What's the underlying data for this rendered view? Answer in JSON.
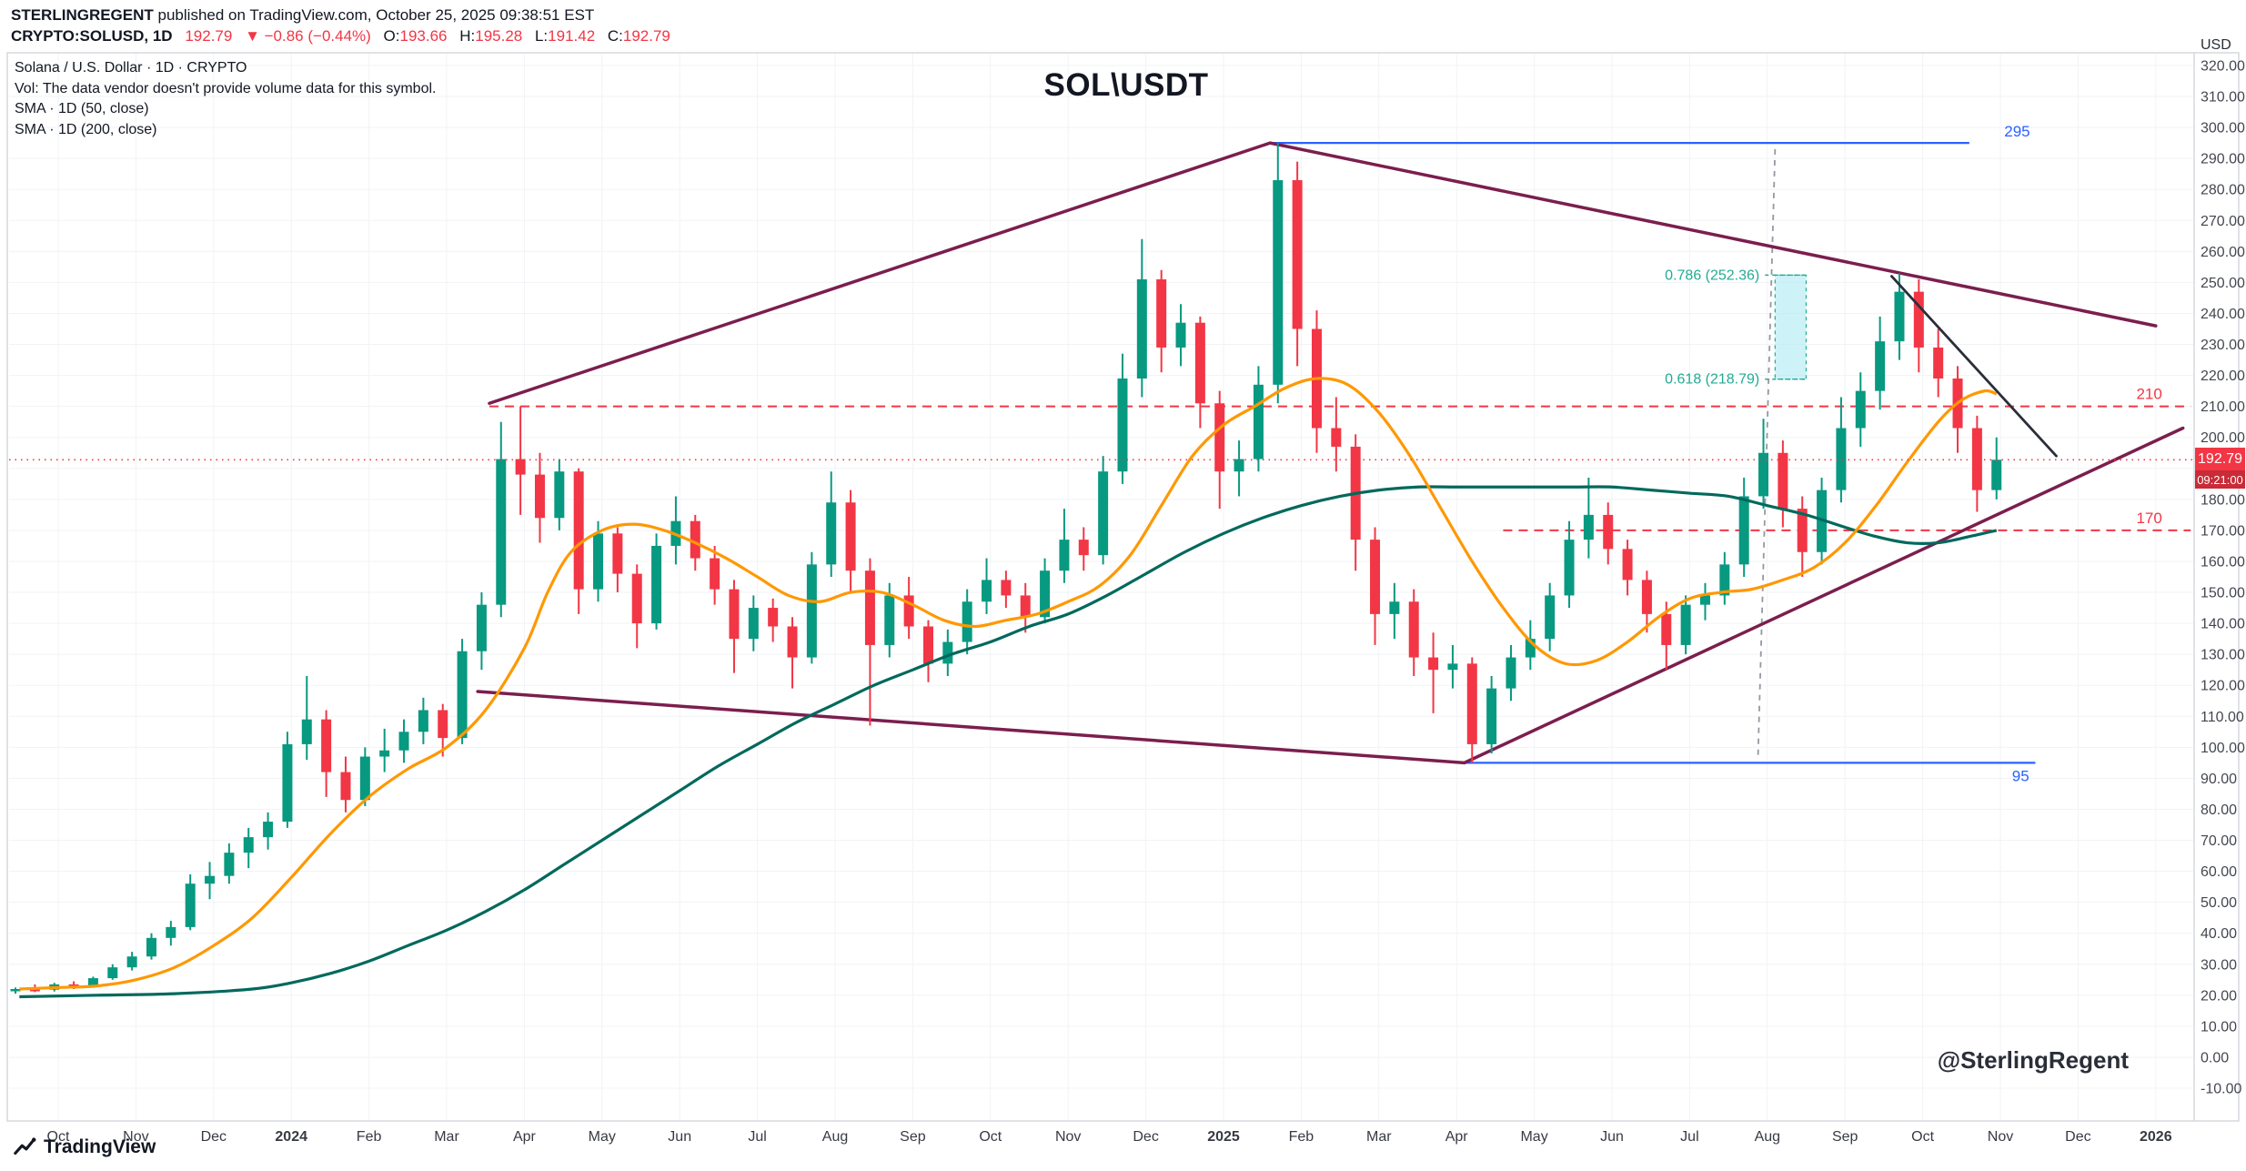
{
  "header": {
    "byline_user": "STERLINGREGENT",
    "byline_rest": " published on TradingView.com, October 25, 2025 09:38:51 EST",
    "symbol": "CRYPTO:SOLUSD, 1D",
    "price": "192.79",
    "change": "▼ −0.86 (−0.44%)",
    "o_label": "O:",
    "o": "193.66",
    "h_label": "H:",
    "h": "195.28",
    "l_label": "L:",
    "l": "191.42",
    "c_label": "C:",
    "c": "192.79"
  },
  "legend": {
    "line1": "Solana / U.S. Dollar · 1D · CRYPTO",
    "line2": "Vol: The data vendor doesn't provide volume data for this symbol.",
    "line3": "SMA · 1D (50, close)",
    "line4": "SMA · 1D (200, close)"
  },
  "title": "SOL\\USDT",
  "watermark": "@SterlingRegent",
  "footer": {
    "brand": "TradingView"
  },
  "price_label": {
    "value": "192.79",
    "countdown": "09:21:00"
  },
  "axis": {
    "currency": "USD",
    "price_min": -10,
    "price_max": 320,
    "price_step": 10,
    "months": [
      "Oct",
      "Nov",
      "Dec",
      "2024",
      "Feb",
      "Mar",
      "Apr",
      "May",
      "Jun",
      "Jul",
      "Aug",
      "Sep",
      "Oct",
      "Nov",
      "Dec",
      "2025",
      "Feb",
      "Mar",
      "Apr",
      "May",
      "Jun",
      "Jul",
      "Aug",
      "Sep",
      "Oct",
      "Nov",
      "Dec",
      "2026"
    ],
    "year_indices": [
      3,
      15,
      27
    ]
  },
  "colors": {
    "up": "#089981",
    "down": "#F23645",
    "sma50": "#FF9800",
    "sma200": "#00695C",
    "pattern": "#7B1E4E",
    "blue": "#2962FF",
    "red": "#F23645",
    "fib": "#22AB94",
    "fib_fill": "#B2EBF2",
    "vline": "#9598A1",
    "trend": "#2A2E39",
    "grid": "#F1F3F6",
    "border": "#D6D8DE",
    "axis_text": "#131722"
  },
  "annotations": {
    "current_price": 192.79,
    "levels": [
      {
        "price": 295,
        "label": "295",
        "color_key": "blue",
        "dash": false,
        "from": 15.6,
        "to": 24.6,
        "label_m": 25.05,
        "label_dy": -7
      },
      {
        "price": 95,
        "label": "95",
        "color_key": "blue",
        "dash": false,
        "from": 18.1,
        "to": 25.45,
        "label_m": 25.15,
        "label_dy": 20
      },
      {
        "price": 210,
        "label": "210",
        "color_key": "red",
        "dash": true,
        "from": 5.55,
        "to": 27.45,
        "label_m": 26.75,
        "label_dy": -8
      },
      {
        "price": 170,
        "label": "170",
        "color_key": "red",
        "dash": true,
        "from": 18.6,
        "to": 27.45,
        "label_m": 26.75,
        "label_dy": -8
      }
    ],
    "fib": {
      "upper_label": "0.786 (252.36)",
      "lower_label": "0.618 (218.79)",
      "upper": 252.36,
      "lower": 218.79,
      "label_m": 21.9,
      "box_from": 22.1,
      "box_to": 22.5
    },
    "pattern_lines": [
      [
        5.55,
        211,
        15.6,
        295
      ],
      [
        15.6,
        295,
        27.0,
        236
      ],
      [
        5.4,
        118,
        18.1,
        95
      ],
      [
        18.1,
        95,
        27.35,
        203
      ]
    ],
    "trendline": [
      23.6,
      252,
      25.72,
      194
    ],
    "vline": [
      22.1,
      293,
      21.88,
      97
    ]
  },
  "chart_data": {
    "type": "candlestick",
    "symbol": "CRYPTO:SOLUSD",
    "timeframe": "1D",
    "title": "SOL\\USDT",
    "x_unit": "months since Oct 1, 2023 (data shown Oct 2023 – late Oct 2025)",
    "ylim": [
      -10,
      320
    ],
    "last_close": 192.79,
    "candles": [
      [
        -0.55,
        21.5,
        22.5,
        20.5,
        22
      ],
      [
        -0.3,
        22,
        23.5,
        21,
        21.8
      ],
      [
        -0.05,
        21.8,
        24,
        21.2,
        23.5
      ],
      [
        0.2,
        23.5,
        24.5,
        22,
        23
      ],
      [
        0.45,
        23,
        26,
        22.5,
        25.5
      ],
      [
        0.7,
        25.5,
        30,
        25,
        29
      ],
      [
        0.95,
        29,
        34,
        28,
        32.5
      ],
      [
        1.2,
        32.5,
        40,
        31.5,
        38.5
      ],
      [
        1.45,
        38.5,
        44,
        36,
        42
      ],
      [
        1.7,
        42,
        59,
        41,
        56
      ],
      [
        1.95,
        56,
        63,
        51,
        58.5
      ],
      [
        2.2,
        58.5,
        69,
        56,
        66
      ],
      [
        2.45,
        66,
        74,
        61,
        71
      ],
      [
        2.7,
        71,
        79,
        67,
        76
      ],
      [
        2.95,
        76,
        105,
        74,
        101
      ],
      [
        3.2,
        101,
        123,
        96,
        109
      ],
      [
        3.45,
        109,
        112,
        84,
        92
      ],
      [
        3.7,
        92,
        97,
        79,
        83
      ],
      [
        3.95,
        83,
        100,
        81,
        97
      ],
      [
        4.2,
        97,
        106,
        92,
        99
      ],
      [
        4.45,
        99,
        109,
        95,
        105
      ],
      [
        4.7,
        105,
        116,
        101,
        112
      ],
      [
        4.95,
        112,
        114,
        97,
        103
      ],
      [
        5.2,
        103,
        135,
        101,
        131
      ],
      [
        5.45,
        131,
        150,
        125,
        146
      ],
      [
        5.7,
        146,
        205,
        142,
        193
      ],
      [
        5.95,
        193,
        210,
        175,
        188
      ],
      [
        6.2,
        188,
        195,
        166,
        174
      ],
      [
        6.45,
        174,
        193,
        170,
        189
      ],
      [
        6.7,
        189,
        190,
        143,
        151
      ],
      [
        6.95,
        151,
        173,
        147,
        169
      ],
      [
        7.2,
        169,
        171,
        150,
        156
      ],
      [
        7.45,
        156,
        159,
        132,
        140
      ],
      [
        7.7,
        140,
        169,
        138,
        165
      ],
      [
        7.95,
        165,
        181,
        159,
        173
      ],
      [
        8.2,
        173,
        175,
        157,
        161
      ],
      [
        8.45,
        161,
        165,
        146,
        151
      ],
      [
        8.7,
        151,
        154,
        124,
        135
      ],
      [
        8.95,
        135,
        149,
        131,
        145
      ],
      [
        9.2,
        145,
        148,
        134,
        139
      ],
      [
        9.45,
        139,
        142,
        119,
        129
      ],
      [
        9.7,
        129,
        163,
        127,
        159
      ],
      [
        9.95,
        159,
        189,
        155,
        179
      ],
      [
        10.2,
        179,
        183,
        150,
        157
      ],
      [
        10.45,
        157,
        161,
        107,
        133
      ],
      [
        10.7,
        133,
        153,
        129,
        149
      ],
      [
        10.95,
        149,
        155,
        135,
        139
      ],
      [
        11.2,
        139,
        141,
        121,
        127
      ],
      [
        11.45,
        127,
        138,
        123,
        134
      ],
      [
        11.7,
        134,
        151,
        130,
        147
      ],
      [
        11.95,
        147,
        161,
        143,
        154
      ],
      [
        12.2,
        154,
        157,
        145,
        149
      ],
      [
        12.45,
        149,
        153,
        137,
        142
      ],
      [
        12.7,
        142,
        161,
        140,
        157
      ],
      [
        12.95,
        157,
        177,
        153,
        167
      ],
      [
        13.2,
        167,
        171,
        157,
        162
      ],
      [
        13.45,
        162,
        194,
        159,
        189
      ],
      [
        13.7,
        189,
        227,
        185,
        219
      ],
      [
        13.95,
        219,
        264,
        213,
        251
      ],
      [
        14.2,
        251,
        254,
        221,
        229
      ],
      [
        14.45,
        229,
        243,
        223,
        237
      ],
      [
        14.7,
        237,
        239,
        203,
        211
      ],
      [
        14.95,
        211,
        215,
        177,
        189
      ],
      [
        15.2,
        189,
        199,
        181,
        193
      ],
      [
        15.45,
        193,
        223,
        189,
        217
      ],
      [
        15.7,
        217,
        295,
        211,
        283
      ],
      [
        15.95,
        283,
        289,
        223,
        235
      ],
      [
        16.2,
        235,
        241,
        195,
        203
      ],
      [
        16.45,
        203,
        213,
        189,
        197
      ],
      [
        16.7,
        197,
        201,
        157,
        167
      ],
      [
        16.95,
        167,
        171,
        133,
        143
      ],
      [
        17.2,
        143,
        153,
        135,
        147
      ],
      [
        17.45,
        147,
        151,
        123,
        129
      ],
      [
        17.7,
        129,
        137,
        111,
        125
      ],
      [
        17.95,
        125,
        133,
        119,
        127
      ],
      [
        18.2,
        127,
        129,
        95,
        101
      ],
      [
        18.45,
        101,
        123,
        98,
        119
      ],
      [
        18.7,
        119,
        133,
        115,
        129
      ],
      [
        18.95,
        129,
        141,
        125,
        135
      ],
      [
        19.2,
        135,
        153,
        131,
        149
      ],
      [
        19.45,
        149,
        173,
        145,
        167
      ],
      [
        19.7,
        167,
        187,
        161,
        175
      ],
      [
        19.95,
        175,
        179,
        159,
        164
      ],
      [
        20.2,
        164,
        167,
        149,
        154
      ],
      [
        20.45,
        154,
        157,
        137,
        143
      ],
      [
        20.7,
        143,
        147,
        125,
        133
      ],
      [
        20.95,
        133,
        149,
        130,
        146
      ],
      [
        21.2,
        146,
        153,
        141,
        149
      ],
      [
        21.45,
        149,
        163,
        146,
        159
      ],
      [
        21.7,
        159,
        187,
        155,
        181
      ],
      [
        21.95,
        181,
        206,
        177,
        195
      ],
      [
        22.2,
        195,
        199,
        171,
        177
      ],
      [
        22.45,
        177,
        181,
        155,
        163
      ],
      [
        22.7,
        163,
        187,
        159,
        183
      ],
      [
        22.95,
        183,
        213,
        179,
        203
      ],
      [
        23.2,
        203,
        221,
        197,
        215
      ],
      [
        23.45,
        215,
        239,
        209,
        231
      ],
      [
        23.7,
        231,
        253,
        225,
        247
      ],
      [
        23.95,
        247,
        251,
        221,
        229
      ],
      [
        24.2,
        229,
        235,
        213,
        219
      ],
      [
        24.45,
        219,
        223,
        195,
        203
      ],
      [
        24.7,
        203,
        207,
        176,
        183
      ],
      [
        24.95,
        183,
        200,
        180,
        192.79
      ]
    ],
    "sma50": [
      [
        -0.5,
        22
      ],
      [
        0,
        22.5
      ],
      [
        0.5,
        23
      ],
      [
        1,
        25
      ],
      [
        1.5,
        29
      ],
      [
        2,
        36
      ],
      [
        2.5,
        45
      ],
      [
        3,
        58
      ],
      [
        3.5,
        72
      ],
      [
        4,
        84
      ],
      [
        4.5,
        93
      ],
      [
        5,
        100
      ],
      [
        5.5,
        112
      ],
      [
        6,
        132
      ],
      [
        6.3,
        150
      ],
      [
        6.6,
        163
      ],
      [
        7,
        170
      ],
      [
        7.4,
        172
      ],
      [
        7.8,
        170
      ],
      [
        8.2,
        166
      ],
      [
        8.6,
        161
      ],
      [
        9,
        155
      ],
      [
        9.4,
        149
      ],
      [
        9.8,
        147
      ],
      [
        10.2,
        150
      ],
      [
        10.6,
        150
      ],
      [
        11,
        146
      ],
      [
        11.4,
        141
      ],
      [
        11.8,
        139
      ],
      [
        12.2,
        141
      ],
      [
        12.6,
        143
      ],
      [
        13,
        147
      ],
      [
        13.4,
        152
      ],
      [
        13.8,
        162
      ],
      [
        14.2,
        178
      ],
      [
        14.6,
        194
      ],
      [
        15,
        204
      ],
      [
        15.4,
        210
      ],
      [
        15.8,
        216
      ],
      [
        16.2,
        219
      ],
      [
        16.6,
        217
      ],
      [
        17,
        208
      ],
      [
        17.4,
        194
      ],
      [
        17.8,
        177
      ],
      [
        18.2,
        160
      ],
      [
        18.6,
        145
      ],
      [
        19,
        133
      ],
      [
        19.4,
        127
      ],
      [
        19.8,
        128
      ],
      [
        20.2,
        134
      ],
      [
        20.6,
        142
      ],
      [
        21,
        148
      ],
      [
        21.4,
        150
      ],
      [
        21.8,
        151
      ],
      [
        22.2,
        154
      ],
      [
        22.6,
        158
      ],
      [
        23,
        166
      ],
      [
        23.4,
        178
      ],
      [
        23.8,
        192
      ],
      [
        24.2,
        205
      ],
      [
        24.5,
        212
      ],
      [
        24.8,
        215
      ],
      [
        24.95,
        214
      ]
    ],
    "sma200": [
      [
        -0.5,
        19.5
      ],
      [
        0.5,
        20
      ],
      [
        1.5,
        20.5
      ],
      [
        2.5,
        22
      ],
      [
        3,
        24
      ],
      [
        3.5,
        27
      ],
      [
        4,
        31
      ],
      [
        4.5,
        36
      ],
      [
        5,
        41
      ],
      [
        5.5,
        47
      ],
      [
        6,
        54
      ],
      [
        6.5,
        62
      ],
      [
        7,
        70
      ],
      [
        7.5,
        78
      ],
      [
        8,
        86
      ],
      [
        8.5,
        94
      ],
      [
        9,
        101
      ],
      [
        9.5,
        108
      ],
      [
        10,
        114
      ],
      [
        10.5,
        120
      ],
      [
        11,
        125
      ],
      [
        11.5,
        130
      ],
      [
        12,
        134
      ],
      [
        12.5,
        139
      ],
      [
        13,
        143
      ],
      [
        13.5,
        149
      ],
      [
        14,
        156
      ],
      [
        14.5,
        163
      ],
      [
        15,
        169
      ],
      [
        15.5,
        174
      ],
      [
        16,
        178
      ],
      [
        16.5,
        181
      ],
      [
        17,
        183
      ],
      [
        17.5,
        184
      ],
      [
        18,
        184
      ],
      [
        18.5,
        184
      ],
      [
        19,
        184
      ],
      [
        19.5,
        184
      ],
      [
        20,
        184
      ],
      [
        20.5,
        183
      ],
      [
        21,
        182
      ],
      [
        21.5,
        181
      ],
      [
        22,
        178
      ],
      [
        22.5,
        175
      ],
      [
        23,
        171
      ],
      [
        23.4,
        168
      ],
      [
        23.8,
        166
      ],
      [
        24.2,
        166
      ],
      [
        24.6,
        168
      ],
      [
        24.95,
        170
      ]
    ]
  }
}
